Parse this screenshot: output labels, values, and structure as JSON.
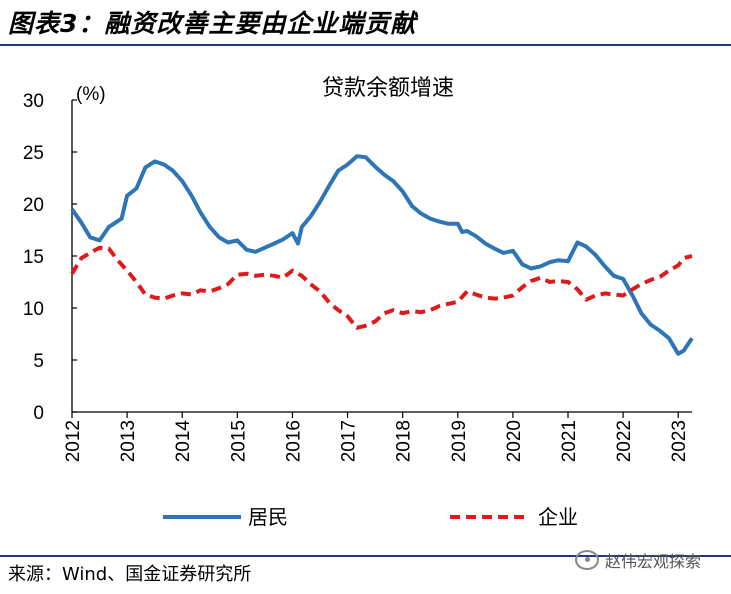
{
  "figure": {
    "title": "图表3：融资改善主要由企业端贡献",
    "source": "来源：Wind、国金证券研究所",
    "watermark": "赵伟宏观探索",
    "watermark_icon": "wechat-icon"
  },
  "chart_data": {
    "type": "line",
    "title": "贷款余额增速",
    "ylabel": "(%)",
    "xlabel": "",
    "ylim": [
      0,
      30
    ],
    "yticks": [
      0,
      5,
      10,
      15,
      20,
      25,
      30
    ],
    "xlim": [
      2012.0,
      2023.25
    ],
    "xticks": [
      "2012",
      "2013",
      "2014",
      "2015",
      "2016",
      "2017",
      "2018",
      "2019",
      "2020",
      "2021",
      "2022",
      "2023"
    ],
    "grid": false,
    "legend_position": "bottom",
    "series": [
      {
        "name": "居民",
        "color": "#2e75b6",
        "style": "solid",
        "points": [
          [
            2012.0,
            19.5
          ],
          [
            2012.17,
            18.2
          ],
          [
            2012.33,
            16.8
          ],
          [
            2012.5,
            16.5
          ],
          [
            2012.67,
            17.8
          ],
          [
            2012.9,
            18.6
          ],
          [
            2013.0,
            20.8
          ],
          [
            2013.17,
            21.5
          ],
          [
            2013.33,
            23.5
          ],
          [
            2013.5,
            24.1
          ],
          [
            2013.67,
            23.8
          ],
          [
            2013.83,
            23.2
          ],
          [
            2014.0,
            22.2
          ],
          [
            2014.17,
            20.8
          ],
          [
            2014.33,
            19.2
          ],
          [
            2014.5,
            17.8
          ],
          [
            2014.67,
            16.8
          ],
          [
            2014.83,
            16.3
          ],
          [
            2015.0,
            16.5
          ],
          [
            2015.17,
            15.6
          ],
          [
            2015.33,
            15.4
          ],
          [
            2015.5,
            15.8
          ],
          [
            2015.67,
            16.2
          ],
          [
            2015.83,
            16.6
          ],
          [
            2016.0,
            17.2
          ],
          [
            2016.1,
            16.2
          ],
          [
            2016.17,
            17.8
          ],
          [
            2016.33,
            18.8
          ],
          [
            2016.5,
            20.2
          ],
          [
            2016.67,
            21.8
          ],
          [
            2016.83,
            23.2
          ],
          [
            2017.0,
            23.8
          ],
          [
            2017.17,
            24.6
          ],
          [
            2017.33,
            24.5
          ],
          [
            2017.5,
            23.6
          ],
          [
            2017.67,
            22.8
          ],
          [
            2017.83,
            22.2
          ],
          [
            2018.0,
            21.2
          ],
          [
            2018.17,
            19.8
          ],
          [
            2018.33,
            19.1
          ],
          [
            2018.5,
            18.6
          ],
          [
            2018.67,
            18.3
          ],
          [
            2018.83,
            18.1
          ],
          [
            2019.0,
            18.1
          ],
          [
            2019.08,
            17.3
          ],
          [
            2019.17,
            17.4
          ],
          [
            2019.33,
            16.9
          ],
          [
            2019.5,
            16.2
          ],
          [
            2019.67,
            15.7
          ],
          [
            2019.83,
            15.3
          ],
          [
            2020.0,
            15.5
          ],
          [
            2020.17,
            14.2
          ],
          [
            2020.33,
            13.8
          ],
          [
            2020.5,
            14.0
          ],
          [
            2020.67,
            14.4
          ],
          [
            2020.83,
            14.6
          ],
          [
            2021.0,
            14.5
          ],
          [
            2021.17,
            16.3
          ],
          [
            2021.33,
            15.9
          ],
          [
            2021.5,
            15.1
          ],
          [
            2021.67,
            14.0
          ],
          [
            2021.83,
            13.1
          ],
          [
            2022.0,
            12.8
          ],
          [
            2022.17,
            11.2
          ],
          [
            2022.33,
            9.5
          ],
          [
            2022.5,
            8.4
          ],
          [
            2022.67,
            7.8
          ],
          [
            2022.83,
            7.1
          ],
          [
            2023.0,
            5.6
          ],
          [
            2023.1,
            5.9
          ],
          [
            2023.25,
            7.1
          ]
        ]
      },
      {
        "name": "企业",
        "color": "#e01a1a",
        "style": "dashed",
        "points": [
          [
            2012.0,
            13.3
          ],
          [
            2012.17,
            14.8
          ],
          [
            2012.33,
            15.3
          ],
          [
            2012.5,
            15.8
          ],
          [
            2012.67,
            15.7
          ],
          [
            2012.83,
            14.6
          ],
          [
            2013.0,
            13.6
          ],
          [
            2013.17,
            12.5
          ],
          [
            2013.33,
            11.3
          ],
          [
            2013.5,
            11.0
          ],
          [
            2013.67,
            10.9
          ],
          [
            2013.83,
            11.2
          ],
          [
            2014.0,
            11.4
          ],
          [
            2014.17,
            11.3
          ],
          [
            2014.33,
            11.7
          ],
          [
            2014.5,
            11.6
          ],
          [
            2014.67,
            11.9
          ],
          [
            2014.83,
            12.3
          ],
          [
            2015.0,
            13.2
          ],
          [
            2015.17,
            13.3
          ],
          [
            2015.33,
            13.1
          ],
          [
            2015.5,
            13.2
          ],
          [
            2015.67,
            13.1
          ],
          [
            2015.83,
            12.9
          ],
          [
            2016.0,
            13.6
          ],
          [
            2016.17,
            13.1
          ],
          [
            2016.33,
            12.3
          ],
          [
            2016.5,
            11.6
          ],
          [
            2016.67,
            10.5
          ],
          [
            2016.83,
            9.8
          ],
          [
            2017.0,
            9.2
          ],
          [
            2017.17,
            8.1
          ],
          [
            2017.33,
            8.3
          ],
          [
            2017.5,
            8.7
          ],
          [
            2017.67,
            9.5
          ],
          [
            2017.83,
            9.8
          ],
          [
            2018.0,
            9.5
          ],
          [
            2018.17,
            9.7
          ],
          [
            2018.33,
            9.6
          ],
          [
            2018.5,
            9.8
          ],
          [
            2018.67,
            10.2
          ],
          [
            2018.83,
            10.4
          ],
          [
            2019.0,
            10.6
          ],
          [
            2019.17,
            11.6
          ],
          [
            2019.33,
            11.3
          ],
          [
            2019.5,
            11.0
          ],
          [
            2019.67,
            10.9
          ],
          [
            2019.83,
            11.0
          ],
          [
            2020.0,
            11.2
          ],
          [
            2020.17,
            12.0
          ],
          [
            2020.33,
            12.6
          ],
          [
            2020.5,
            12.9
          ],
          [
            2020.67,
            12.5
          ],
          [
            2020.83,
            12.6
          ],
          [
            2021.0,
            12.5
          ],
          [
            2021.17,
            11.8
          ],
          [
            2021.33,
            10.8
          ],
          [
            2021.5,
            11.2
          ],
          [
            2021.67,
            11.4
          ],
          [
            2021.83,
            11.3
          ],
          [
            2022.0,
            11.2
          ],
          [
            2022.17,
            11.8
          ],
          [
            2022.33,
            12.3
          ],
          [
            2022.5,
            12.7
          ],
          [
            2022.67,
            13.0
          ],
          [
            2022.83,
            13.6
          ],
          [
            2023.0,
            14.1
          ],
          [
            2023.1,
            14.8
          ],
          [
            2023.25,
            15.0
          ]
        ]
      }
    ]
  }
}
